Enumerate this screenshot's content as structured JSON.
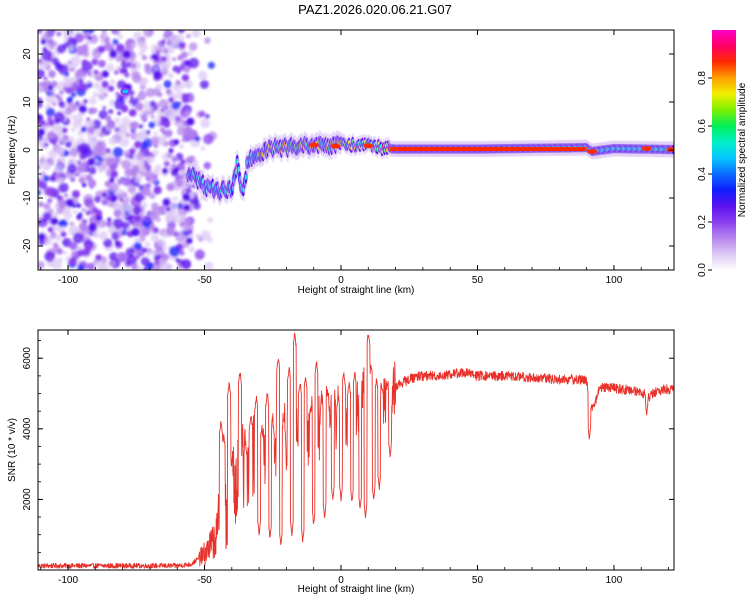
{
  "figure_title": "PAZ1.2026.020.06.21.G07",
  "colors": {
    "snr_line": "#e8312a",
    "frame": "#000000",
    "colormap": [
      "#ffffff",
      "#dcc8f4",
      "#b685ee",
      "#8a3ff0",
      "#5a12ee",
      "#0f1dff",
      "#0b6bff",
      "#06c7ff",
      "#00f0c8",
      "#00f05a",
      "#7cf000",
      "#f0f000",
      "#ffa000",
      "#ff2a00",
      "#ff0064",
      "#ff00c8"
    ]
  },
  "chart_data": [
    {
      "type": "heatmap",
      "title": "",
      "xlabel": "Height of straight line (km)",
      "ylabel": "Frequency (Hz)",
      "xlim": [
        -111,
        122
      ],
      "ylim": [
        -25,
        25
      ],
      "x_ticks": [
        "-100",
        "-50",
        "0",
        "50",
        "100"
      ],
      "y_ticks": [
        "-20",
        "-10",
        "0",
        "10",
        "20"
      ],
      "colorbar": {
        "label": "Normalized spectral amplitude",
        "range": [
          0,
          1
        ],
        "ticks": [
          "0.0",
          "0.2",
          "0.4",
          "0.6",
          "0.8"
        ]
      },
      "features": {
        "noise_region_x": [
          -111,
          -55
        ],
        "ridge_path": [
          [
            -55,
            -5
          ],
          [
            -50,
            -7.5
          ],
          [
            -45,
            -8.5
          ],
          [
            -40,
            -8
          ],
          [
            -38,
            -3
          ],
          [
            -36,
            -9
          ],
          [
            -34,
            -2
          ],
          [
            -30,
            -1
          ],
          [
            -25,
            0.5
          ],
          [
            -20,
            0.5
          ],
          [
            -15,
            1
          ],
          [
            -10,
            1
          ],
          [
            -5,
            0.8
          ],
          [
            0,
            1.2
          ],
          [
            5,
            1
          ],
          [
            10,
            1
          ],
          [
            15,
            0.4
          ],
          [
            20,
            0.2
          ],
          [
            50,
            0.2
          ],
          [
            90,
            0.5
          ],
          [
            92,
            -0.3
          ],
          [
            100,
            0.3
          ],
          [
            122,
            0.1
          ]
        ],
        "saturated_band_x": [
          18,
          90
        ]
      }
    },
    {
      "type": "line",
      "title": "",
      "xlabel": "Height of straight line (km)",
      "ylabel": "SNR (10 * v/v)",
      "xlim": [
        -111,
        122
      ],
      "ylim": [
        0,
        6800
      ],
      "x_ticks": [
        "-100",
        "-50",
        "0",
        "50",
        "100"
      ],
      "y_ticks": [
        "2000",
        "4000",
        "6000"
      ],
      "series": [
        {
          "name": "SNR",
          "envelope_x": [
            -111,
            -60,
            -55,
            -50,
            -46,
            -44,
            -42,
            -40,
            -38,
            -36,
            -34,
            -32,
            -30,
            -28,
            -26,
            -24,
            -22,
            -20,
            -18,
            -16,
            -14,
            -12,
            -10,
            -8,
            -6,
            -4,
            -2,
            0,
            2,
            4,
            6,
            8,
            10,
            12,
            14,
            16,
            18,
            20,
            22,
            25,
            28,
            32,
            36,
            40,
            45,
            50,
            60,
            70,
            80,
            85,
            88,
            90,
            92,
            95,
            100,
            105,
            110,
            113,
            115,
            118,
            122
          ],
          "envelope_y": [
            120,
            120,
            160,
            450,
            900,
            1300,
            1800,
            2300,
            2700,
            2900,
            3000,
            3200,
            3300,
            3400,
            3400,
            3500,
            3600,
            3700,
            3800,
            3800,
            3900,
            3900,
            4000,
            4100,
            4200,
            4300,
            4300,
            4300,
            4400,
            4600,
            4700,
            4800,
            4700,
            4600,
            4500,
            4800,
            5000,
            5200,
            5300,
            5400,
            5500,
            5500,
            5500,
            5550,
            5600,
            5500,
            5500,
            5450,
            5400,
            5400,
            5400,
            5350,
            4500,
            5200,
            5150,
            5100,
            5050,
            4900,
            5050,
            5100,
            5150
          ],
          "spikes": [
            [
              -44,
              4200
            ],
            [
              -43,
              3800
            ],
            [
              -41,
              5300
            ],
            [
              -40,
              3000
            ],
            [
              -37,
              5600
            ],
            [
              -35,
              3600
            ],
            [
              -33,
              4400
            ],
            [
              -31,
              4900
            ],
            [
              -29,
              4000
            ],
            [
              -27,
              5000
            ],
            [
              -25,
              4200
            ],
            [
              -23,
              6000
            ],
            [
              -21,
              4300
            ],
            [
              -19,
              5700
            ],
            [
              -17,
              6700
            ],
            [
              -15,
              5300
            ],
            [
              -13,
              5500
            ],
            [
              -11,
              4600
            ],
            [
              -9,
              5900
            ],
            [
              -7,
              4800
            ],
            [
              -5,
              5100
            ],
            [
              -3,
              5300
            ],
            [
              -1,
              4900
            ],
            [
              1,
              5600
            ],
            [
              3,
              5300
            ],
            [
              5,
              5600
            ],
            [
              7,
              5300
            ],
            [
              9,
              6100
            ],
            [
              10,
              6700
            ],
            [
              11,
              5800
            ],
            [
              13,
              5400
            ],
            [
              15,
              5200
            ],
            [
              17,
              5300
            ]
          ],
          "dips": [
            [
              -30,
              1000
            ],
            [
              -26,
              900
            ],
            [
              -22,
              700
            ],
            [
              -18,
              1000
            ],
            [
              -14,
              800
            ],
            [
              -10,
              1300
            ],
            [
              -6,
              1500
            ],
            [
              -3,
              2000
            ],
            [
              0,
              2000
            ],
            [
              4,
              1900
            ],
            [
              7,
              1700
            ],
            [
              9,
              1500
            ],
            [
              12,
              2000
            ],
            [
              14,
              2300
            ],
            [
              18,
              3200
            ],
            [
              91,
              3700
            ],
            [
              112,
              4400
            ]
          ]
        }
      ]
    }
  ]
}
